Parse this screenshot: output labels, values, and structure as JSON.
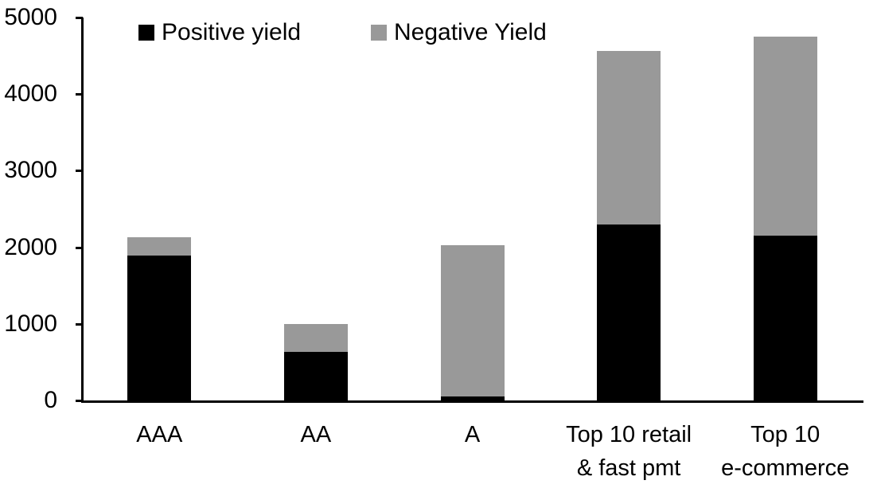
{
  "chart_data": {
    "type": "bar",
    "stacked": true,
    "title": "",
    "xlabel": "",
    "ylabel": "",
    "categories": [
      "AAA",
      "AA",
      "A",
      "Top 10 retail\n& fast pmt",
      "Top 10\ne-commerce"
    ],
    "series": [
      {
        "name": "Positive yield",
        "color": "#000000",
        "values": [
          1890,
          630,
          50,
          2300,
          2150
        ]
      },
      {
        "name": "Negative Yield",
        "color": "#999999",
        "values": [
          240,
          370,
          1980,
          2260,
          2600
        ]
      }
    ],
    "totals": [
      2130,
      1000,
      2030,
      4560,
      4750
    ],
    "ylim": [
      0,
      5000
    ],
    "yticks": [
      0,
      1000,
      2000,
      3000,
      4000,
      5000
    ],
    "grid": false,
    "legend_position": "top",
    "axis_color": "#000000",
    "background_color": "#ffffff"
  }
}
